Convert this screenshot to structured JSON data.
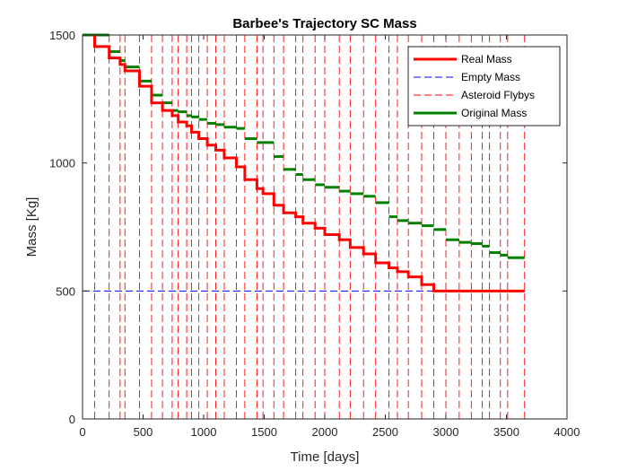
{
  "chart_data": {
    "type": "line",
    "title": "Barbee's Trajectory SC Mass",
    "xlabel": "Time [days]",
    "ylabel": "Mass [Kg]",
    "xlim": [
      0,
      4000
    ],
    "ylim": [
      0,
      1500
    ],
    "x_ticks": [
      0,
      500,
      1000,
      1500,
      2000,
      2500,
      3000,
      3500,
      4000
    ],
    "y_ticks": [
      0,
      500,
      1000,
      1500
    ],
    "x_tick_labels": [
      "0",
      "500",
      "1000",
      "1500",
      "2000",
      "2500",
      "3000",
      "3500",
      "4000"
    ],
    "y_tick_labels": [
      "0",
      "500",
      "1000",
      "1500"
    ],
    "grid": false,
    "legend_position": "top-right",
    "series": [
      {
        "name": "Real Mass",
        "color": "#ff0000",
        "style": "solid",
        "points": [
          [
            100,
            1500
          ],
          [
            100,
            1455
          ],
          [
            220,
            1455
          ],
          [
            220,
            1410
          ],
          [
            310,
            1410
          ],
          [
            310,
            1385
          ],
          [
            350,
            1385
          ],
          [
            350,
            1360
          ],
          [
            470,
            1360
          ],
          [
            470,
            1300
          ],
          [
            570,
            1300
          ],
          [
            570,
            1235
          ],
          [
            660,
            1235
          ],
          [
            660,
            1205
          ],
          [
            740,
            1205
          ],
          [
            740,
            1185
          ],
          [
            790,
            1185
          ],
          [
            790,
            1160
          ],
          [
            860,
            1160
          ],
          [
            860,
            1145
          ],
          [
            900,
            1145
          ],
          [
            900,
            1120
          ],
          [
            960,
            1120
          ],
          [
            960,
            1095
          ],
          [
            1030,
            1095
          ],
          [
            1030,
            1070
          ],
          [
            1100,
            1070
          ],
          [
            1100,
            1050
          ],
          [
            1170,
            1050
          ],
          [
            1170,
            1020
          ],
          [
            1270,
            1020
          ],
          [
            1270,
            985
          ],
          [
            1340,
            985
          ],
          [
            1340,
            935
          ],
          [
            1440,
            935
          ],
          [
            1440,
            900
          ],
          [
            1490,
            900
          ],
          [
            1490,
            880
          ],
          [
            1580,
            880
          ],
          [
            1580,
            835
          ],
          [
            1660,
            835
          ],
          [
            1660,
            805
          ],
          [
            1760,
            805
          ],
          [
            1760,
            790
          ],
          [
            1820,
            790
          ],
          [
            1820,
            765
          ],
          [
            1920,
            765
          ],
          [
            1920,
            745
          ],
          [
            2000,
            745
          ],
          [
            2000,
            720
          ],
          [
            2120,
            720
          ],
          [
            2120,
            700
          ],
          [
            2210,
            700
          ],
          [
            2210,
            670
          ],
          [
            2320,
            670
          ],
          [
            2320,
            645
          ],
          [
            2420,
            645
          ],
          [
            2420,
            610
          ],
          [
            2530,
            610
          ],
          [
            2530,
            590
          ],
          [
            2600,
            590
          ],
          [
            2600,
            575
          ],
          [
            2690,
            575
          ],
          [
            2690,
            555
          ],
          [
            2800,
            555
          ],
          [
            2800,
            525
          ],
          [
            2900,
            525
          ],
          [
            2900,
            500
          ],
          [
            3650,
            500
          ]
        ]
      },
      {
        "name": "Empty Mass",
        "color": "#0000ff",
        "style": "dashed",
        "points": [
          [
            0,
            500
          ],
          [
            3650,
            500
          ]
        ]
      },
      {
        "name": "Asteroid Flybys",
        "color": "#ff0000",
        "style": "dashed",
        "vertical_lines_x": [
          100,
          220,
          310,
          350,
          470,
          570,
          660,
          740,
          790,
          860,
          900,
          960,
          1030,
          1100,
          1170,
          1270,
          1340,
          1440,
          1490,
          1580,
          1660,
          1760,
          1820,
          1920,
          2000,
          2120,
          2210,
          2320,
          2420,
          2530,
          2600,
          2690,
          2800,
          2900,
          3000,
          3110,
          3210,
          3300,
          3360,
          3450,
          3510,
          3650
        ]
      },
      {
        "name": "Original Mass",
        "color": "#008000",
        "style": "solid",
        "segments": [
          [
            0,
            220,
            1500
          ],
          [
            220,
            310,
            1435
          ],
          [
            310,
            350,
            1400
          ],
          [
            350,
            470,
            1375
          ],
          [
            470,
            570,
            1320
          ],
          [
            570,
            660,
            1265
          ],
          [
            660,
            740,
            1235
          ],
          [
            740,
            790,
            1205
          ],
          [
            790,
            860,
            1200
          ],
          [
            860,
            900,
            1185
          ],
          [
            900,
            960,
            1180
          ],
          [
            960,
            1030,
            1170
          ],
          [
            1030,
            1100,
            1155
          ],
          [
            1100,
            1170,
            1150
          ],
          [
            1170,
            1270,
            1140
          ],
          [
            1270,
            1340,
            1135
          ],
          [
            1340,
            1440,
            1095
          ],
          [
            1440,
            1580,
            1080
          ],
          [
            1580,
            1660,
            1025
          ],
          [
            1660,
            1760,
            975
          ],
          [
            1760,
            1820,
            955
          ],
          [
            1820,
            1920,
            935
          ],
          [
            1920,
            2000,
            915
          ],
          [
            2000,
            2120,
            905
          ],
          [
            2120,
            2210,
            890
          ],
          [
            2210,
            2320,
            880
          ],
          [
            2320,
            2420,
            870
          ],
          [
            2420,
            2530,
            845
          ],
          [
            2530,
            2600,
            790
          ],
          [
            2600,
            2690,
            775
          ],
          [
            2690,
            2800,
            765
          ],
          [
            2800,
            2900,
            755
          ],
          [
            2900,
            3000,
            740
          ],
          [
            3000,
            3110,
            700
          ],
          [
            3110,
            3210,
            690
          ],
          [
            3210,
            3300,
            685
          ],
          [
            3300,
            3360,
            675
          ],
          [
            3360,
            3450,
            650
          ],
          [
            3450,
            3510,
            640
          ],
          [
            3510,
            3650,
            630
          ]
        ]
      }
    ]
  }
}
